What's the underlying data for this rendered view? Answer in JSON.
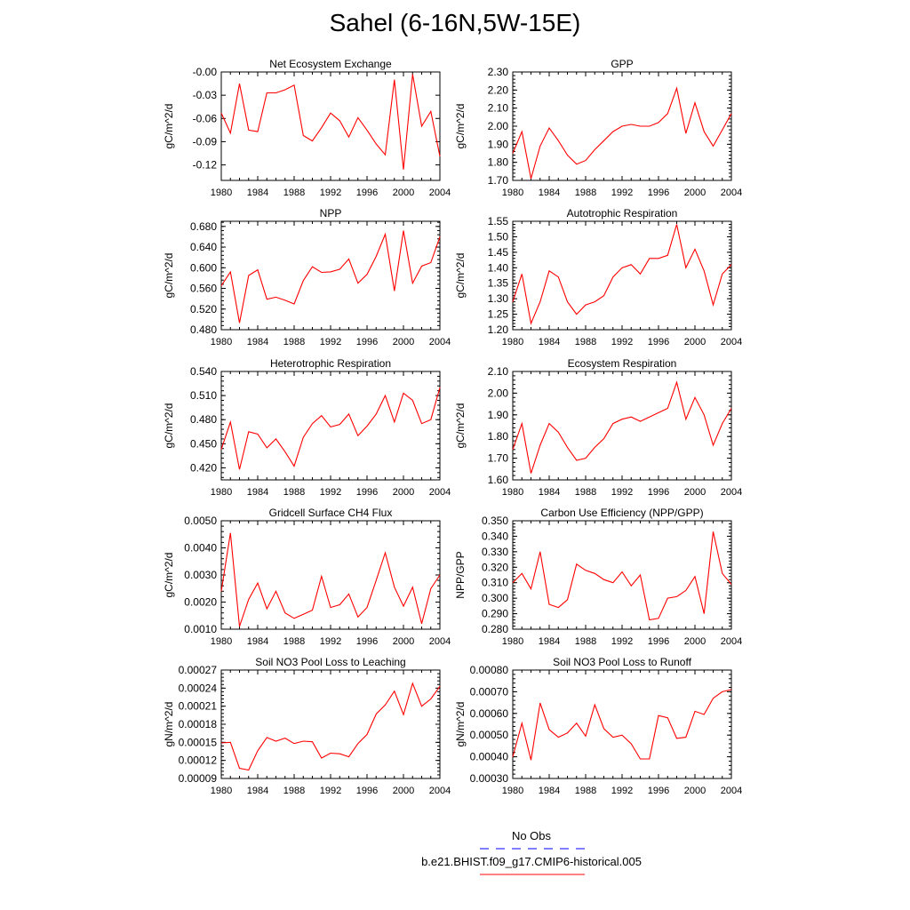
{
  "title": "Sahel (6-16N,5W-15E)",
  "legend": {
    "obs_label": "No Obs",
    "obs_color": "#0000ff",
    "run_label": "b.e21.BHIST.f09_g17.CMIP6-historical.005",
    "run_color": "#ff0000"
  },
  "chart_data": [
    {
      "type": "line",
      "title": "Net Ecosystem Exchange",
      "ylabel": "gC/m^2/d",
      "xlim": [
        1980,
        2004
      ],
      "xticks": [
        1980,
        1984,
        1988,
        1992,
        1996,
        2000,
        2004
      ],
      "ylim": [
        -0.14,
        0.0
      ],
      "yticks": [
        "-0.00",
        "-0.03",
        "-0.06",
        "-0.09",
        "-0.12"
      ],
      "ytick_values": [
        0.0,
        -0.03,
        -0.06,
        -0.09,
        -0.12
      ],
      "series": [
        {
          "x": [
            1980,
            1981,
            1982,
            1983,
            1984,
            1985,
            1986,
            1987,
            1988,
            1989,
            1990,
            1991,
            1992,
            1993,
            1994,
            1995,
            1996,
            1997,
            1998,
            1999,
            2000,
            2001,
            2002,
            2003,
            2004
          ],
          "values": [
            -0.053,
            -0.079,
            -0.015,
            -0.075,
            -0.077,
            -0.027,
            -0.027,
            -0.023,
            -0.017,
            -0.082,
            -0.089,
            -0.072,
            -0.053,
            -0.063,
            -0.084,
            -0.059,
            -0.075,
            -0.093,
            -0.107,
            -0.01,
            -0.126,
            -0.003,
            -0.07,
            -0.051,
            -0.109
          ]
        }
      ]
    },
    {
      "type": "line",
      "title": "GPP",
      "ylabel": "gC/m^2/d",
      "xlim": [
        1980,
        2004
      ],
      "xticks": [
        1980,
        1984,
        1988,
        1992,
        1996,
        2000,
        2004
      ],
      "ylim": [
        1.7,
        2.3
      ],
      "yticks": [
        "1.70",
        "1.80",
        "1.90",
        "2.00",
        "2.10",
        "2.20",
        "2.30"
      ],
      "ytick_values": [
        1.7,
        1.8,
        1.9,
        2.0,
        2.1,
        2.2,
        2.3
      ],
      "series": [
        {
          "x": [
            1980,
            1981,
            1982,
            1983,
            1984,
            1985,
            1986,
            1987,
            1988,
            1989,
            1990,
            1991,
            1992,
            1993,
            1994,
            1995,
            1996,
            1997,
            1998,
            1999,
            2000,
            2001,
            2002,
            2003,
            2004
          ],
          "values": [
            1.85,
            1.97,
            1.71,
            1.89,
            1.99,
            1.92,
            1.84,
            1.79,
            1.81,
            1.87,
            1.92,
            1.97,
            2.0,
            2.01,
            2.0,
            2.0,
            2.02,
            2.07,
            2.21,
            1.96,
            2.13,
            1.97,
            1.89,
            1.98,
            2.07
          ]
        }
      ]
    },
    {
      "type": "line",
      "title": "NPP",
      "ylabel": "gC/m^2/d",
      "xlim": [
        1980,
        2004
      ],
      "xticks": [
        1980,
        1984,
        1988,
        1992,
        1996,
        2000,
        2004
      ],
      "ylim": [
        0.48,
        0.69
      ],
      "yticks": [
        "0.480",
        "0.520",
        "0.560",
        "0.600",
        "0.640",
        "0.680"
      ],
      "ytick_values": [
        0.48,
        0.52,
        0.56,
        0.6,
        0.64,
        0.68
      ],
      "series": [
        {
          "x": [
            1980,
            1981,
            1982,
            1983,
            1984,
            1985,
            1986,
            1987,
            1988,
            1989,
            1990,
            1991,
            1992,
            1993,
            1994,
            1995,
            1996,
            1997,
            1998,
            1999,
            2000,
            2001,
            2002,
            2003,
            2004
          ],
          "values": [
            0.565,
            0.592,
            0.493,
            0.585,
            0.596,
            0.539,
            0.543,
            0.537,
            0.53,
            0.575,
            0.602,
            0.591,
            0.592,
            0.597,
            0.617,
            0.57,
            0.587,
            0.622,
            0.665,
            0.555,
            0.672,
            0.57,
            0.603,
            0.61,
            0.66
          ]
        }
      ]
    },
    {
      "type": "line",
      "title": "Autotrophic Respiration",
      "ylabel": "gC/m^2/d",
      "xlim": [
        1980,
        2004
      ],
      "xticks": [
        1980,
        1984,
        1988,
        1992,
        1996,
        2000,
        2004
      ],
      "ylim": [
        1.2,
        1.55
      ],
      "yticks": [
        "1.20",
        "1.25",
        "1.30",
        "1.35",
        "1.40",
        "1.45",
        "1.50",
        "1.55"
      ],
      "ytick_values": [
        1.2,
        1.25,
        1.3,
        1.35,
        1.4,
        1.45,
        1.5,
        1.55
      ],
      "series": [
        {
          "x": [
            1980,
            1981,
            1982,
            1983,
            1984,
            1985,
            1986,
            1987,
            1988,
            1989,
            1990,
            1991,
            1992,
            1993,
            1994,
            1995,
            1996,
            1997,
            1998,
            1999,
            2000,
            2001,
            2002,
            2003,
            2004
          ],
          "values": [
            1.29,
            1.38,
            1.22,
            1.29,
            1.39,
            1.37,
            1.29,
            1.25,
            1.28,
            1.29,
            1.31,
            1.37,
            1.4,
            1.41,
            1.38,
            1.43,
            1.43,
            1.44,
            1.54,
            1.4,
            1.46,
            1.39,
            1.28,
            1.38,
            1.41
          ]
        }
      ]
    },
    {
      "type": "line",
      "title": "Heterotrophic Respiration",
      "ylabel": "gC/m^2/d",
      "xlim": [
        1980,
        2004
      ],
      "xticks": [
        1980,
        1984,
        1988,
        1992,
        1996,
        2000,
        2004
      ],
      "ylim": [
        0.405,
        0.54
      ],
      "yticks": [
        "0.420",
        "0.450",
        "0.480",
        "0.510",
        "0.540"
      ],
      "ytick_values": [
        0.42,
        0.45,
        0.48,
        0.51,
        0.54
      ],
      "series": [
        {
          "x": [
            1980,
            1981,
            1982,
            1983,
            1984,
            1985,
            1986,
            1987,
            1988,
            1989,
            1990,
            1991,
            1992,
            1993,
            1994,
            1995,
            1996,
            1997,
            1998,
            1999,
            2000,
            2001,
            2002,
            2003,
            2004
          ],
          "values": [
            0.443,
            0.477,
            0.418,
            0.465,
            0.462,
            0.445,
            0.456,
            0.44,
            0.422,
            0.458,
            0.475,
            0.485,
            0.471,
            0.474,
            0.487,
            0.46,
            0.472,
            0.487,
            0.51,
            0.477,
            0.513,
            0.504,
            0.475,
            0.48,
            0.52
          ]
        }
      ]
    },
    {
      "type": "line",
      "title": "Ecosystem Respiration",
      "ylabel": "gC/m^2/d",
      "xlim": [
        1980,
        2004
      ],
      "xticks": [
        1980,
        1984,
        1988,
        1992,
        1996,
        2000,
        2004
      ],
      "ylim": [
        1.6,
        2.1
      ],
      "yticks": [
        "1.60",
        "1.70",
        "1.80",
        "1.90",
        "2.00",
        "2.10"
      ],
      "ytick_values": [
        1.6,
        1.7,
        1.8,
        1.9,
        2.0,
        2.1
      ],
      "series": [
        {
          "x": [
            1980,
            1981,
            1982,
            1983,
            1984,
            1985,
            1986,
            1987,
            1988,
            1989,
            1990,
            1991,
            1992,
            1993,
            1994,
            1995,
            1996,
            1997,
            1998,
            1999,
            2000,
            2001,
            2002,
            2003,
            2004
          ],
          "values": [
            1.74,
            1.86,
            1.63,
            1.76,
            1.86,
            1.82,
            1.75,
            1.69,
            1.7,
            1.75,
            1.79,
            1.86,
            1.88,
            1.89,
            1.87,
            1.89,
            1.91,
            1.93,
            2.05,
            1.88,
            1.98,
            1.9,
            1.76,
            1.86,
            1.93
          ]
        }
      ]
    },
    {
      "type": "line",
      "title": "Gridcell Surface CH4 Flux",
      "ylabel": "gC/m^2/d",
      "xlim": [
        1980,
        2004
      ],
      "xticks": [
        1980,
        1984,
        1988,
        1992,
        1996,
        2000,
        2004
      ],
      "ylim": [
        0.001,
        0.005
      ],
      "yticks": [
        "0.0010",
        "0.0020",
        "0.0030",
        "0.0040",
        "0.0050"
      ],
      "ytick_values": [
        0.001,
        0.002,
        0.003,
        0.004,
        0.005
      ],
      "series": [
        {
          "x": [
            1980,
            1981,
            1982,
            1983,
            1984,
            1985,
            1986,
            1987,
            1988,
            1989,
            1990,
            1991,
            1992,
            1993,
            1994,
            1995,
            1996,
            1997,
            1998,
            1999,
            2000,
            2001,
            2002,
            2003,
            2004
          ],
          "values": [
            0.0024,
            0.00455,
            0.0011,
            0.0021,
            0.0027,
            0.00175,
            0.0024,
            0.0016,
            0.0014,
            0.00155,
            0.0017,
            0.00295,
            0.0018,
            0.0019,
            0.0023,
            0.00145,
            0.0018,
            0.0028,
            0.00382,
            0.00255,
            0.00185,
            0.00255,
            0.0012,
            0.0025,
            0.003
          ]
        }
      ]
    },
    {
      "type": "line",
      "title": "Carbon Use Efficiency (NPP/GPP)",
      "ylabel": "NPP/GPP",
      "xlim": [
        1980,
        2004
      ],
      "xticks": [
        1980,
        1984,
        1988,
        1992,
        1996,
        2000,
        2004
      ],
      "ylim": [
        0.28,
        0.35
      ],
      "yticks": [
        "0.280",
        "0.290",
        "0.300",
        "0.310",
        "0.320",
        "0.330",
        "0.340",
        "0.350"
      ],
      "ytick_values": [
        0.28,
        0.29,
        0.3,
        0.31,
        0.32,
        0.33,
        0.34,
        0.35
      ],
      "series": [
        {
          "x": [
            1980,
            1981,
            1982,
            1983,
            1984,
            1985,
            1986,
            1987,
            1988,
            1989,
            1990,
            1991,
            1992,
            1993,
            1994,
            1995,
            1996,
            1997,
            1998,
            1999,
            2000,
            2001,
            2002,
            2003,
            2004
          ],
          "values": [
            0.31,
            0.316,
            0.306,
            0.33,
            0.296,
            0.294,
            0.299,
            0.322,
            0.318,
            0.316,
            0.312,
            0.31,
            0.317,
            0.308,
            0.315,
            0.286,
            0.287,
            0.3,
            0.301,
            0.305,
            0.314,
            0.29,
            0.343,
            0.316,
            0.309
          ]
        }
      ]
    },
    {
      "type": "line",
      "title": "Soil NO3 Pool Loss to Leaching",
      "ylabel": "gN/m^2/d",
      "xlim": [
        1980,
        2004
      ],
      "xticks": [
        1980,
        1984,
        1988,
        1992,
        1996,
        2000,
        2004
      ],
      "ylim": [
        9e-05,
        0.00027
      ],
      "yticks": [
        "0.00009",
        "0.00012",
        "0.00015",
        "0.00018",
        "0.00021",
        "0.00024",
        "0.00027"
      ],
      "ytick_values": [
        9e-05,
        0.00012,
        0.00015,
        0.00018,
        0.00021,
        0.00024,
        0.00027
      ],
      "series": [
        {
          "x": [
            1980,
            1981,
            1982,
            1983,
            1984,
            1985,
            1986,
            1987,
            1988,
            1989,
            1990,
            1991,
            1992,
            1993,
            1994,
            1995,
            1996,
            1997,
            1998,
            1999,
            2000,
            2001,
            2002,
            2003,
            2004
          ],
          "values": [
            0.000149,
            0.00015,
            0.000107,
            0.000104,
            0.000136,
            0.000158,
            0.000152,
            0.000157,
            0.000148,
            0.000152,
            0.000151,
            0.000124,
            0.000132,
            0.000131,
            0.000126,
            0.000148,
            0.000163,
            0.000197,
            0.000212,
            0.000235,
            0.000196,
            0.000248,
            0.00021,
            0.000222,
            0.000243
          ]
        }
      ]
    },
    {
      "type": "line",
      "title": "Soil NO3 Pool Loss to Runoff",
      "ylabel": "gN/m^2/d",
      "xlim": [
        1980,
        2004
      ],
      "xticks": [
        1980,
        1984,
        1988,
        1992,
        1996,
        2000,
        2004
      ],
      "ylim": [
        0.0003,
        0.0008
      ],
      "yticks": [
        "0.00030",
        "0.00040",
        "0.00050",
        "0.00060",
        "0.00070",
        "0.00080"
      ],
      "ytick_values": [
        0.0003,
        0.0004,
        0.0005,
        0.0006,
        0.0007,
        0.0008
      ],
      "series": [
        {
          "x": [
            1980,
            1981,
            1982,
            1983,
            1984,
            1985,
            1986,
            1987,
            1988,
            1989,
            1990,
            1991,
            1992,
            1993,
            1994,
            1995,
            1996,
            1997,
            1998,
            1999,
            2000,
            2001,
            2002,
            2003,
            2004
          ],
          "values": [
            0.0004,
            0.000555,
            0.000385,
            0.000648,
            0.000525,
            0.00049,
            0.00051,
            0.000555,
            0.000495,
            0.00064,
            0.00053,
            0.00049,
            0.0005,
            0.00046,
            0.00039,
            0.00039,
            0.00059,
            0.00058,
            0.000485,
            0.00049,
            0.00061,
            0.000595,
            0.00067,
            0.0007,
            0.00071
          ]
        }
      ]
    }
  ]
}
